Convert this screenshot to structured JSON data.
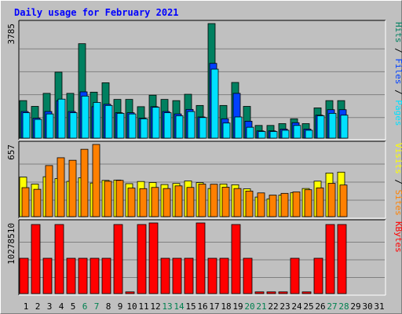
{
  "chart_data": {
    "type": "bar",
    "title": "Daily usage for February 2021",
    "x": [
      "1",
      "2",
      "3",
      "4",
      "5",
      "6",
      "7",
      "8",
      "9",
      "10",
      "11",
      "12",
      "13",
      "14",
      "15",
      "16",
      "17",
      "18",
      "19",
      "20",
      "21",
      "22",
      "23",
      "24",
      "25",
      "26",
      "27",
      "28",
      "29",
      "30",
      "31"
    ],
    "weekend_days": [
      6,
      7,
      13,
      14,
      20,
      21,
      27,
      28
    ],
    "panels": [
      {
        "id": "hits",
        "axis_max_label": "3785",
        "max": 3785,
        "right_labels": [
          {
            "text": "Hits",
            "color": "#008060"
          },
          {
            "text": " / ",
            "color": "#000000"
          },
          {
            "text": "Files",
            "color": "#0040ff"
          },
          {
            "text": " / ",
            "color": "#000000"
          },
          {
            "text": "Pages",
            "color": "#00e0ff"
          }
        ],
        "series": [
          {
            "name": "Hits",
            "color": "#008060",
            "values": [
              1240,
              1050,
              1480,
              2180,
              1480,
              3120,
              1520,
              1830,
              1280,
              1280,
              1040,
              1420,
              1280,
              1240,
              1450,
              1080,
              3785,
              1080,
              1840,
              1050,
              420,
              420,
              480,
              640,
              480,
              1000,
              1240,
              1240,
              0,
              0,
              0
            ]
          },
          {
            "name": "Files",
            "color": "#0040ff",
            "values": [
              880,
              660,
              880,
              1240,
              880,
              1530,
              1040,
              1120,
              840,
              840,
              660,
              1040,
              880,
              800,
              950,
              700,
              2470,
              640,
              1480,
              560,
              240,
              240,
              300,
              510,
              300,
              760,
              940,
              940,
              0,
              0,
              0
            ]
          },
          {
            "name": "Pages",
            "color": "#00e0ff",
            "values": [
              840,
              620,
              800,
              1290,
              840,
              1390,
              1180,
              1080,
              820,
              800,
              640,
              1020,
              840,
              740,
              880,
              680,
              2280,
              500,
              700,
              360,
              220,
              220,
              260,
              420,
              260,
              740,
              820,
              760,
              0,
              0,
              0
            ]
          }
        ]
      },
      {
        "id": "visits",
        "axis_max_label": "657",
        "max": 657,
        "right_labels": [
          {
            "text": "Visits",
            "color": "#ffff00"
          },
          {
            "text": " / ",
            "color": "#000000"
          },
          {
            "text": "Sites",
            "color": "#ff8000"
          }
        ],
        "series": [
          {
            "name": "Visits",
            "color": "#ffff00",
            "values": [
              360,
              296,
              363,
              346,
              321,
              354,
              306,
              330,
              333,
              300,
              320,
              311,
              292,
              302,
              325,
              310,
              256,
              297,
              290,
              253,
              178,
              162,
              196,
              219,
              256,
              323,
              397,
              405,
              0,
              0,
              0
            ]
          },
          {
            "name": "Sites",
            "color": "#ff8000",
            "values": [
              264,
              249,
              465,
              536,
              513,
              613,
              657,
              322,
              330,
              260,
              255,
              266,
              256,
              280,
              266,
              296,
              295,
              268,
              256,
              233,
              216,
              196,
              212,
              225,
              245,
              262,
              303,
              288,
              0,
              0,
              0
            ]
          }
        ]
      },
      {
        "id": "kbytes",
        "axis_max_label": "10278510",
        "max": 10278510,
        "right_labels": [
          {
            "text": "KBytes",
            "color": "#ff0000"
          }
        ],
        "series": [
          {
            "name": "KBytes",
            "color": "#ff0000",
            "values": [
              5140000,
              10050000,
              5140000,
              10050000,
              5140000,
              5140000,
              5140000,
              5140000,
              10050000,
              250000,
              10050000,
              10278510,
              5140000,
              5140000,
              5140000,
              10278510,
              5140000,
              5140000,
              10050000,
              5140000,
              250000,
              250000,
              250000,
              5140000,
              250000,
              5140000,
              10050000,
              10050000,
              0,
              0,
              0
            ]
          }
        ]
      }
    ]
  },
  "colors": {
    "background": "#c0c0c0",
    "title": "#0000ff",
    "weekend_label": "#00804f",
    "weekday_label": "#000000",
    "gridline": "#808080"
  }
}
